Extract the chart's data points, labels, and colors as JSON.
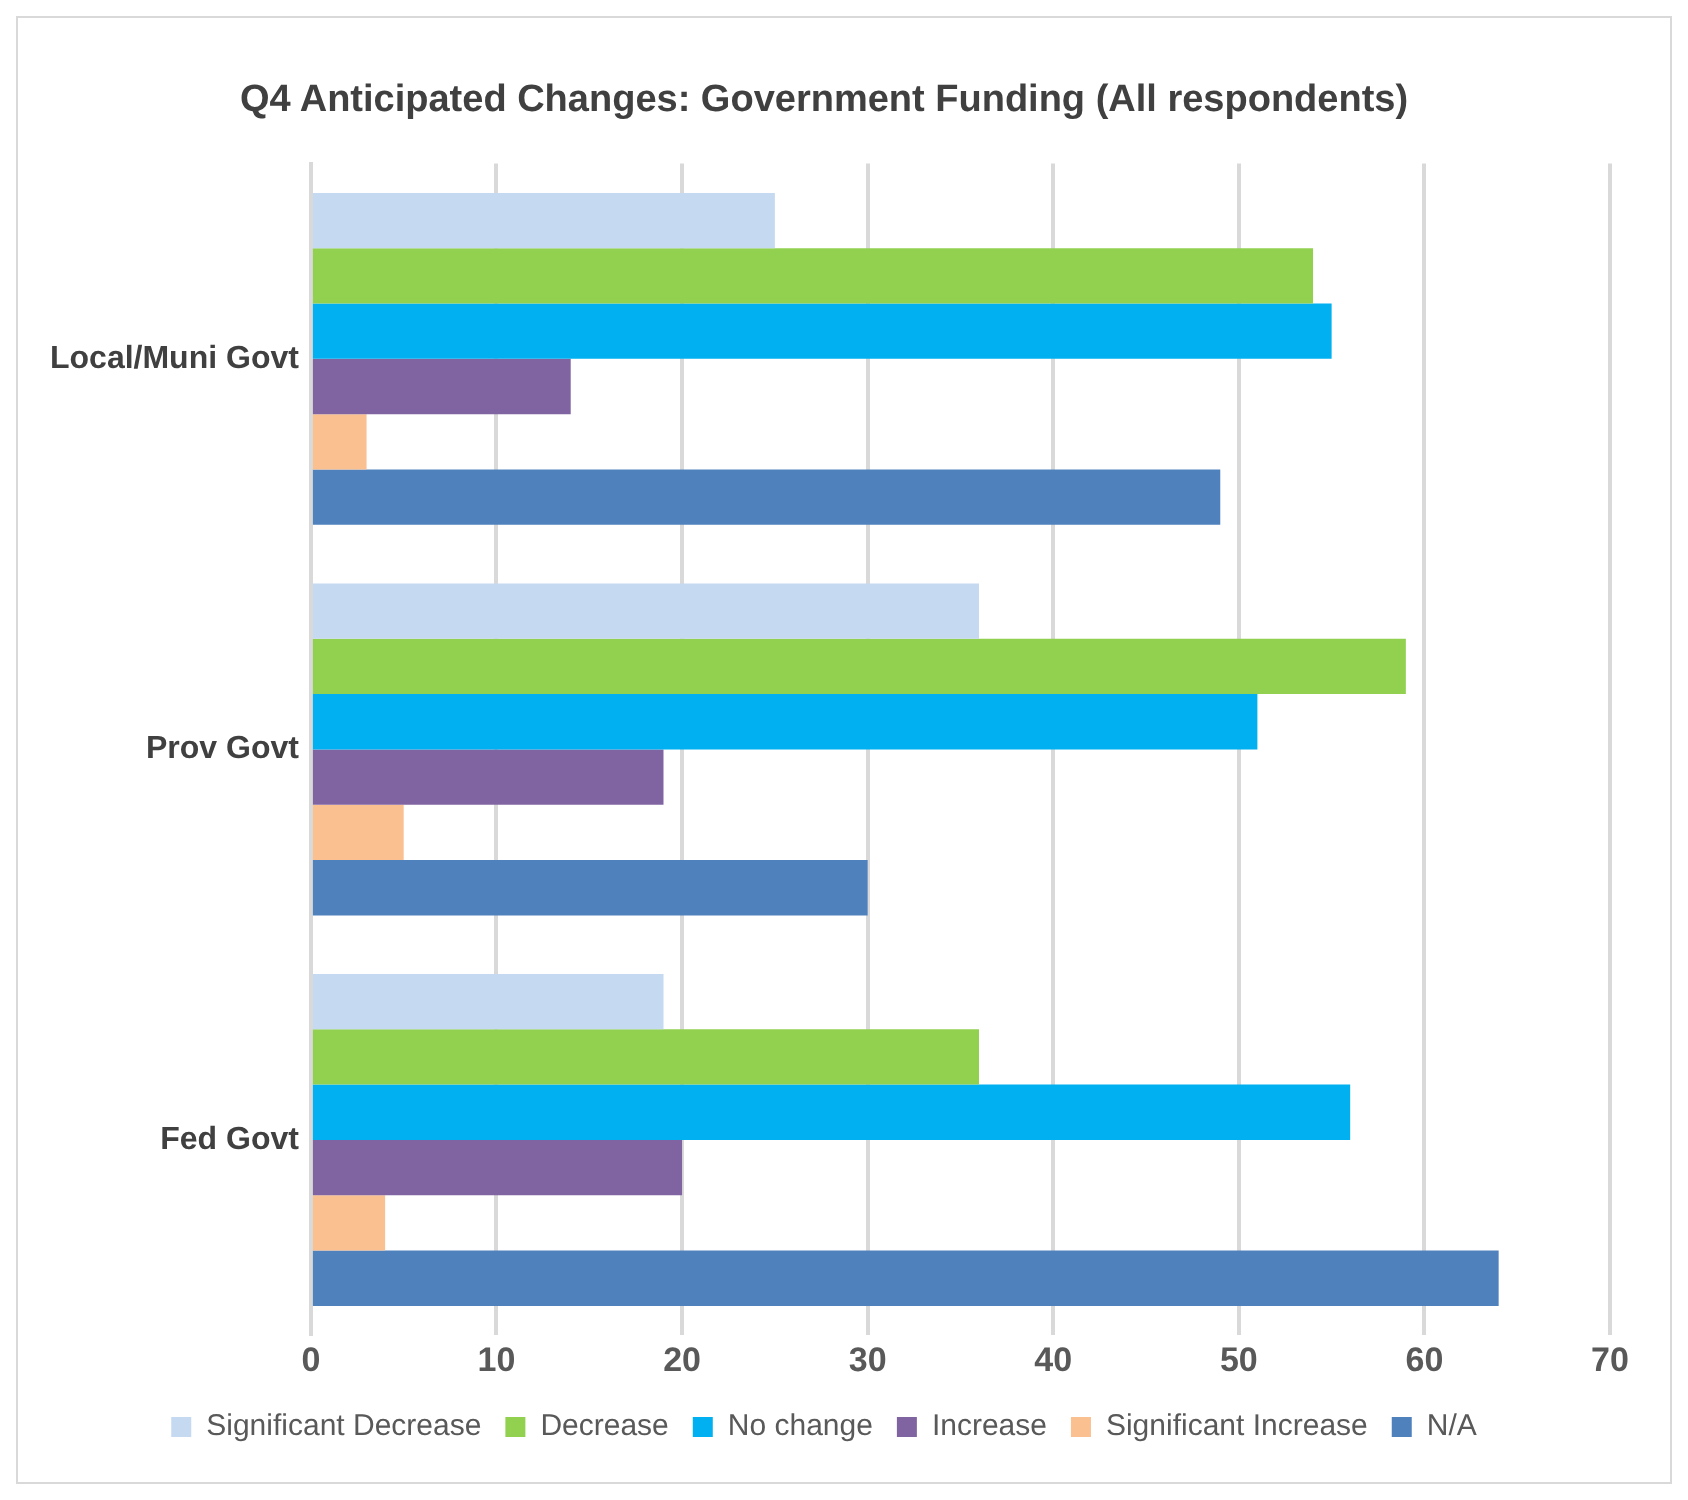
{
  "chart_data": {
    "type": "bar",
    "orientation": "horizontal",
    "title": "Q4 Anticipated Changes: Government Funding (All respondents)",
    "categories": [
      "Local/Muni Govt",
      "Prov Govt",
      "Fed Govt"
    ],
    "series": [
      {
        "name": "Significant Decrease",
        "color": "#c5d9f1",
        "values": [
          25,
          36,
          19
        ]
      },
      {
        "name": "Decrease",
        "color": "#92d050",
        "values": [
          54,
          59,
          36
        ]
      },
      {
        "name": "No change",
        "color": "#00b0f0",
        "values": [
          55,
          51,
          56
        ]
      },
      {
        "name": "Increase",
        "color": "#8064a2",
        "values": [
          14,
          19,
          20
        ]
      },
      {
        "name": "Significant Increase",
        "color": "#fac090",
        "values": [
          3,
          5,
          4
        ]
      },
      {
        "name": "N/A",
        "color": "#4f81bd",
        "values": [
          49,
          30,
          64
        ]
      }
    ],
    "xlim": [
      0,
      70
    ],
    "xticks": [
      0,
      10,
      20,
      30,
      40,
      50,
      60,
      70
    ],
    "grid": "x",
    "legend": "bottom"
  }
}
